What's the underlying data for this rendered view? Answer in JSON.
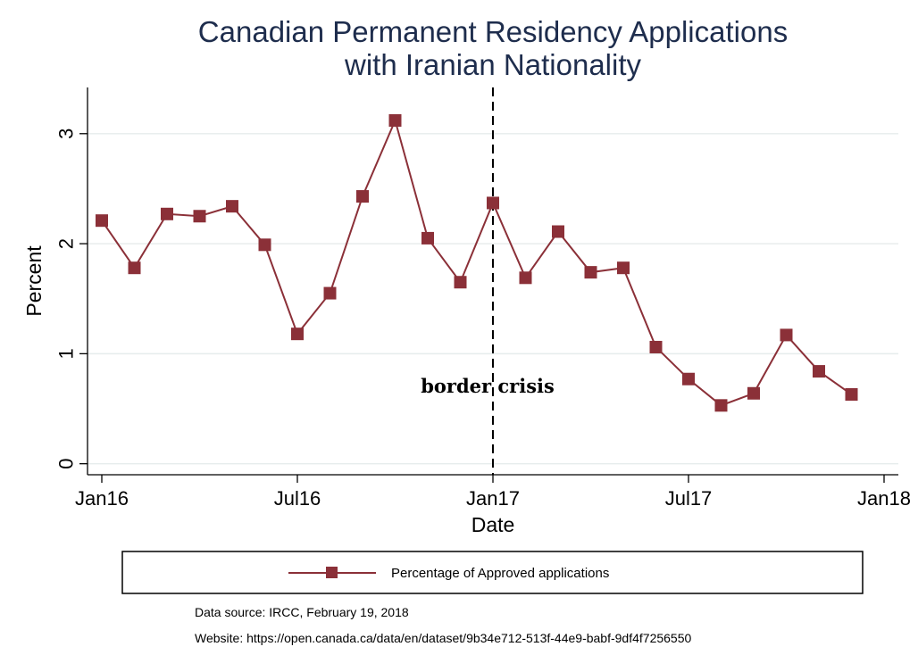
{
  "chart_data": {
    "type": "line",
    "title_lines": [
      "Canadian Permanent Residency Applications",
      "with Iranian Nationality"
    ],
    "xlabel": "Date",
    "ylabel": "Percent",
    "x_ticks": [
      "Jan16",
      "Jul16",
      "Jan17",
      "Jul17",
      "Jan18"
    ],
    "y_ticks": [
      0,
      1,
      2,
      3
    ],
    "ylim": [
      -0.1,
      3.42
    ],
    "xlim": [
      "Jan16",
      "Jan18"
    ],
    "grid": "horizontal",
    "legend_position": "bottom",
    "series": [
      {
        "name": "Percentage of Approved applications",
        "color": "#8b3038",
        "marker": "square",
        "x": [
          "Jan16",
          "Feb16",
          "Mar16",
          "Apr16",
          "May16",
          "Jun16",
          "Jul16",
          "Aug16",
          "Sep16",
          "Oct16",
          "Nov16",
          "Dec16",
          "Jan17",
          "Feb17",
          "Mar17",
          "Apr17",
          "May17",
          "Jun17",
          "Jul17",
          "Aug17",
          "Sep17",
          "Oct17",
          "Nov17",
          "Dec17"
        ],
        "values": [
          2.21,
          1.78,
          2.27,
          2.25,
          2.34,
          1.99,
          1.18,
          1.55,
          2.43,
          3.12,
          2.05,
          1.65,
          2.37,
          1.69,
          2.11,
          1.74,
          1.78,
          1.06,
          0.77,
          0.53,
          0.64,
          1.17,
          0.84,
          0.63
        ]
      }
    ],
    "annotations": [
      {
        "label": "border crisis",
        "x": "Jan17",
        "style": "dashed vertical line"
      }
    ]
  },
  "footnotes": {
    "source": "Data source: IRCC, February 19, 2018",
    "website": "Website: https://open.canada.ca/data/en/dataset/9b34e712-513f-44e9-babf-9df4f7256550"
  }
}
